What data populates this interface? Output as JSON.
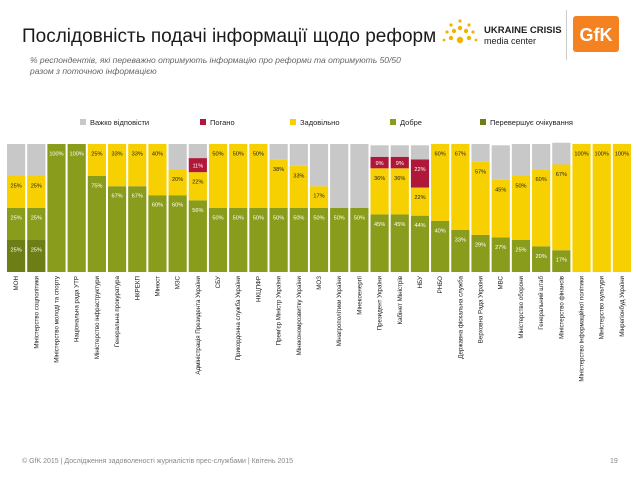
{
  "header": {
    "title": "Послідовність подачі інформації щодо реформ",
    "subtitle": "% респондентів, які переважно отримують інформацію про реформи та отримують 50/50 разом з поточною інформацією"
  },
  "logos": {
    "ucmc_line1": "UKRAINE CRISIS",
    "ucmc_line2": "media center",
    "gfk": "GfK"
  },
  "footer": {
    "text": "© GfK 2015 | Дослідження задоволеності журналістів прес-службами | Квітень 2015",
    "page_number": "19"
  },
  "colors": {
    "hard": "#c8c8c8",
    "bad": "#b0183a",
    "ok": "#f6d000",
    "good": "#8a9c1b",
    "exceeds": "#6e7e16",
    "text": "#222222",
    "label_on_dark": "#ffffff"
  },
  "chart_data": {
    "type": "bar",
    "stacked": true,
    "legend": [
      "Важко відповісти",
      "Погано",
      "Задовільно",
      "Добре",
      "Перевершує очікування"
    ],
    "categories": [
      "МОН",
      "Міністерство соцполітики",
      "Міністерство молоді та спорту",
      "Національна рада УТР",
      "Міністерство інфраструктури",
      "Генеральна прокуратура",
      "НКРЕКП",
      "Мінюст",
      "МЗС",
      "Адміністрація Президента України",
      "СБУ",
      "Прикордонна служба України",
      "НКЦПФР",
      "Прем'єр Міністр України",
      "Мінекономрозвитку України",
      "МОЗ",
      "Мінагрополітики України",
      "Мінекоенергії",
      "Президент України",
      "Кабінет Міністрів",
      "НБУ",
      "РНБО",
      "Державна фіскальна служба",
      "Верховна Рада України",
      "МВС",
      "Міністерство оборони",
      "Генеральний штаб",
      "Міністерство фінансів",
      "Міністерство інформаційної політики",
      "Міністерство культури",
      "Мінрегіонбуд України"
    ],
    "series": [
      {
        "name": "Перевершує очікування",
        "values": [
          25,
          25,
          0,
          0,
          0,
          0,
          0,
          0,
          0,
          0,
          0,
          0,
          0,
          0,
          0,
          0,
          0,
          0,
          0,
          0,
          0,
          0,
          0,
          0,
          0,
          0,
          0,
          0,
          0,
          0,
          0
        ]
      },
      {
        "name": "Добре",
        "values": [
          25,
          25,
          100,
          100,
          75,
          67,
          67,
          60,
          60,
          56,
          50,
          50,
          50,
          50,
          50,
          50,
          50,
          50,
          45,
          45,
          44,
          40,
          33,
          29,
          27,
          25,
          20,
          17,
          0,
          0,
          0
        ]
      },
      {
        "name": "Задовільно",
        "values": [
          25,
          25,
          0,
          0,
          25,
          33,
          33,
          40,
          20,
          22,
          50,
          50,
          50,
          38,
          33,
          17,
          0,
          0,
          36,
          36,
          22,
          60,
          67,
          57,
          45,
          50,
          60,
          67,
          100,
          100,
          100
        ]
      },
      {
        "name": "Погано",
        "values": [
          0,
          0,
          0,
          0,
          0,
          0,
          0,
          0,
          0,
          11,
          0,
          0,
          0,
          0,
          0,
          0,
          0,
          0,
          9,
          9,
          22,
          0,
          0,
          0,
          0,
          0,
          0,
          0,
          0,
          0,
          0
        ]
      },
      {
        "name": "Важко відповісти",
        "values": [
          25,
          25,
          0,
          0,
          0,
          0,
          0,
          0,
          20,
          11,
          0,
          0,
          0,
          12,
          17,
          33,
          50,
          50,
          9,
          9,
          11,
          0,
          0,
          14,
          27,
          25,
          20,
          17,
          0,
          0,
          0
        ]
      }
    ],
    "ylim": [
      0,
      100
    ],
    "xlabel": "",
    "ylabel": "",
    "data_labels": true
  }
}
